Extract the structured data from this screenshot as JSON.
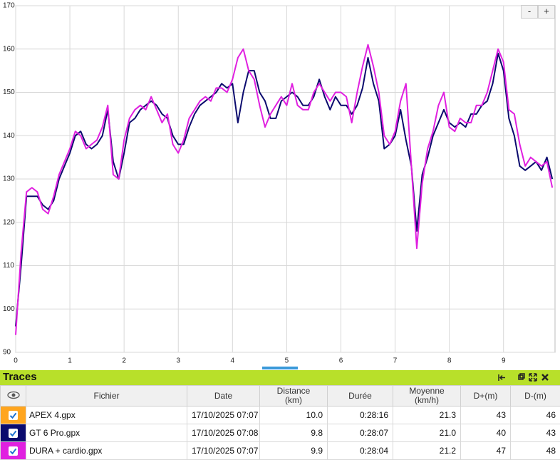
{
  "chart_data": {
    "type": "line",
    "x": [
      0,
      0.1,
      0.2,
      0.3,
      0.4,
      0.5,
      0.6,
      0.7,
      0.8,
      0.9,
      1,
      1.1,
      1.2,
      1.3,
      1.4,
      1.5,
      1.6,
      1.7,
      1.8,
      1.9,
      2,
      2.1,
      2.2,
      2.3,
      2.4,
      2.5,
      2.6,
      2.7,
      2.8,
      2.9,
      3,
      3.1,
      3.2,
      3.3,
      3.4,
      3.5,
      3.6,
      3.7,
      3.8,
      3.9,
      4,
      4.1,
      4.2,
      4.3,
      4.4,
      4.5,
      4.6,
      4.7,
      4.8,
      4.9,
      5,
      5.1,
      5.2,
      5.3,
      5.4,
      5.5,
      5.6,
      5.7,
      5.8,
      5.9,
      6,
      6.1,
      6.2,
      6.3,
      6.4,
      6.5,
      6.6,
      6.7,
      6.8,
      6.9,
      7,
      7.1,
      7.2,
      7.3,
      7.4,
      7.5,
      7.6,
      7.7,
      7.8,
      7.9,
      8,
      8.1,
      8.2,
      8.3,
      8.4,
      8.5,
      8.6,
      8.7,
      8.8,
      8.9,
      9,
      9.1,
      9.2,
      9.3,
      9.4,
      9.5,
      9.6,
      9.7,
      9.8,
      9.9
    ],
    "series": [
      {
        "color": "#0b0b6e",
        "values": [
          96,
          110,
          126,
          126,
          126,
          124,
          123,
          125,
          130,
          133,
          136,
          140,
          141,
          138,
          137,
          138,
          140,
          146,
          134,
          130,
          136,
          143,
          144,
          146,
          147,
          148,
          147,
          145,
          144,
          140,
          138,
          138,
          142,
          145,
          147,
          148,
          149,
          150,
          152,
          151,
          152,
          143,
          150,
          155,
          155,
          150,
          148,
          144,
          144,
          148,
          149,
          150,
          149,
          147,
          147,
          149,
          153,
          149,
          146,
          149,
          147,
          147,
          145,
          147,
          151,
          158,
          152,
          148,
          137,
          138,
          140,
          146,
          139,
          133,
          118,
          131,
          135,
          140,
          143,
          146,
          143,
          142,
          143,
          142,
          145,
          145,
          147,
          148,
          152,
          159,
          155,
          144,
          140,
          133,
          132,
          133,
          134,
          132,
          135,
          130
        ]
      },
      {
        "color": "#e020e0",
        "values": [
          94,
          113,
          127,
          128,
          127,
          123,
          122,
          126,
          131,
          134,
          137,
          141,
          140,
          137,
          138,
          139,
          142,
          147,
          131,
          130,
          139,
          144,
          146,
          147,
          146,
          149,
          146,
          143,
          145,
          138,
          136,
          139,
          144,
          146,
          148,
          149,
          148,
          151,
          151,
          150,
          153,
          158,
          160,
          155,
          153,
          147,
          142,
          145,
          147,
          149,
          147,
          152,
          147,
          146,
          146,
          150,
          152,
          150,
          148,
          150,
          150,
          149,
          143,
          150,
          156,
          161,
          156,
          150,
          140,
          138,
          141,
          148,
          152,
          133,
          114,
          129,
          137,
          141,
          147,
          150,
          142,
          141,
          144,
          143,
          143,
          147,
          147,
          150,
          155,
          160,
          157,
          146,
          145,
          138,
          133,
          135,
          134,
          133,
          134,
          128
        ]
      }
    ],
    "xlim": [
      0,
      9.95
    ],
    "ylim": [
      90,
      170
    ],
    "xticks": [
      0,
      1,
      2,
      3,
      4,
      5,
      6,
      7,
      8,
      9
    ],
    "yticks": [
      90,
      100,
      110,
      120,
      130,
      140,
      150,
      160,
      170
    ],
    "grid": true
  },
  "zoom_controls": [
    "-",
    "+"
  ],
  "panel_title": "Traces",
  "table": {
    "columns": [
      [
        "Fichier"
      ],
      [
        "Date"
      ],
      [
        "Distance",
        "(km)"
      ],
      [
        "Durée"
      ],
      [
        "Moyenne",
        "(km/h)"
      ],
      [
        "D+(m)"
      ],
      [
        "D-(m)"
      ]
    ],
    "rows": [
      {
        "color": "#ffa51e",
        "cells": [
          "APEX 4.gpx",
          "17/10/2025 07:07",
          "10.0",
          "0:28:16",
          "21.3",
          "43",
          "46"
        ]
      },
      {
        "color": "#0b0b6e",
        "cells": [
          "GT 6 Pro.gpx",
          "17/10/2025 07:08",
          "9.8",
          "0:28:07",
          "21.0",
          "40",
          "43"
        ]
      },
      {
        "color": "#e020e0",
        "cells": [
          "DURA + cardio.gpx",
          "17/10/2025 07:07",
          "9.9",
          "0:28:04",
          "21.2",
          "47",
          "48"
        ]
      }
    ]
  }
}
